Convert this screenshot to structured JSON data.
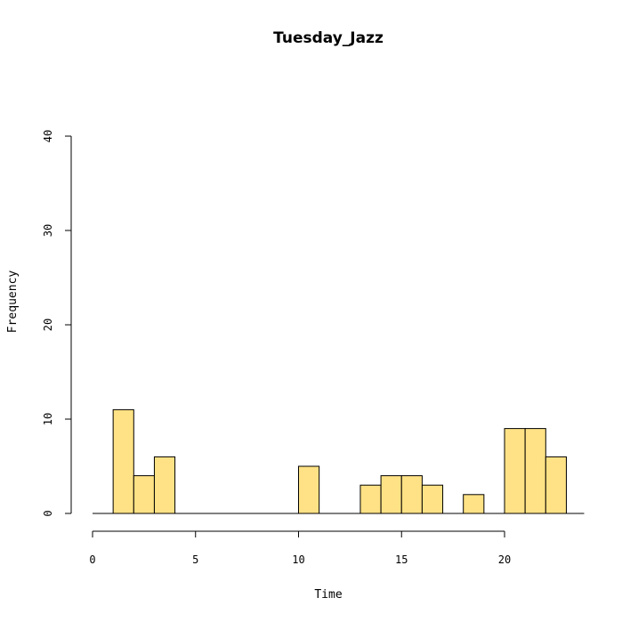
{
  "chart_data": {
    "type": "histogram",
    "title": "Tuesday_Jazz",
    "xlabel": "Time",
    "ylabel": "Frequency",
    "xlim": [
      0,
      24
    ],
    "ylim": [
      0,
      40
    ],
    "x_ticks": [
      0,
      5,
      10,
      15,
      20
    ],
    "y_ticks": [
      0,
      10,
      20,
      30,
      40
    ],
    "bin_width": 1,
    "bins": [
      {
        "start": 0,
        "end": 1,
        "count": 0
      },
      {
        "start": 1,
        "end": 2,
        "count": 11
      },
      {
        "start": 2,
        "end": 3,
        "count": 4
      },
      {
        "start": 3,
        "end": 4,
        "count": 6
      },
      {
        "start": 4,
        "end": 5,
        "count": 0
      },
      {
        "start": 5,
        "end": 6,
        "count": 0
      },
      {
        "start": 6,
        "end": 7,
        "count": 0
      },
      {
        "start": 7,
        "end": 8,
        "count": 0
      },
      {
        "start": 8,
        "end": 9,
        "count": 0
      },
      {
        "start": 9,
        "end": 10,
        "count": 0
      },
      {
        "start": 10,
        "end": 11,
        "count": 5
      },
      {
        "start": 11,
        "end": 12,
        "count": 0
      },
      {
        "start": 12,
        "end": 13,
        "count": 0
      },
      {
        "start": 13,
        "end": 14,
        "count": 3
      },
      {
        "start": 14,
        "end": 15,
        "count": 4
      },
      {
        "start": 15,
        "end": 16,
        "count": 4
      },
      {
        "start": 16,
        "end": 17,
        "count": 3
      },
      {
        "start": 17,
        "end": 18,
        "count": 0
      },
      {
        "start": 18,
        "end": 19,
        "count": 2
      },
      {
        "start": 19,
        "end": 20,
        "count": 0
      },
      {
        "start": 20,
        "end": 21,
        "count": 9
      },
      {
        "start": 21,
        "end": 22,
        "count": 9
      },
      {
        "start": 22,
        "end": 23,
        "count": 6
      }
    ],
    "bar_color": "#FFE285",
    "grid": false,
    "legend": "none"
  }
}
